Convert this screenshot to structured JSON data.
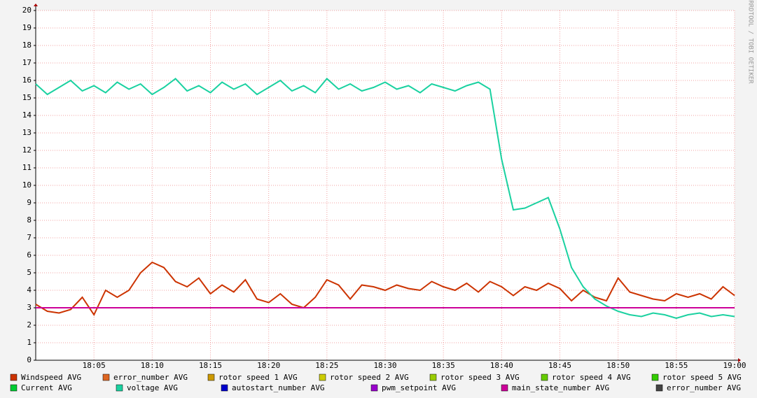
{
  "chart_data": {
    "type": "line",
    "watermark": "RRDTOOL / TOBI OETIKER",
    "categories": [
      null,
      null,
      null,
      null,
      null,
      "18:05",
      null,
      null,
      null,
      null,
      "18:10",
      null,
      null,
      null,
      null,
      "18:15",
      null,
      null,
      null,
      null,
      "18:20",
      null,
      null,
      null,
      null,
      "18:25",
      null,
      null,
      null,
      null,
      "18:30",
      null,
      null,
      null,
      null,
      "18:35",
      null,
      null,
      null,
      null,
      "18:40",
      null,
      null,
      null,
      null,
      "18:45",
      null,
      null,
      null,
      null,
      "18:50",
      null,
      null,
      null,
      null,
      "18:55",
      null,
      null,
      null,
      null,
      "19:00"
    ],
    "ylim": [
      0,
      20
    ],
    "yticks": [
      0,
      1,
      2,
      3,
      4,
      5,
      6,
      7,
      8,
      9,
      10,
      11,
      12,
      13,
      14,
      15,
      16,
      17,
      18,
      19,
      20
    ],
    "grid": true,
    "series": [
      {
        "name": "Windspeed AVG",
        "color": "#cc3300",
        "values": [
          3.2,
          2.8,
          2.7,
          2.9,
          3.6,
          2.6,
          4.0,
          3.6,
          4.0,
          5.0,
          5.6,
          5.3,
          4.5,
          4.2,
          4.7,
          3.8,
          4.3,
          3.9,
          4.6,
          3.5,
          3.3,
          3.8,
          3.2,
          3.0,
          3.6,
          4.6,
          4.3,
          3.5,
          4.3,
          4.2,
          4.0,
          4.3,
          4.1,
          4.0,
          4.5,
          4.2,
          4.0,
          4.4,
          3.9,
          4.5,
          4.2,
          3.7,
          4.2,
          4.0,
          4.4,
          4.1,
          3.4,
          4.0,
          3.6,
          3.4,
          4.7,
          3.9,
          3.7,
          3.5,
          3.4,
          3.8,
          3.6,
          3.8,
          3.5,
          4.2,
          3.7
        ]
      },
      {
        "name": "error_number AVG",
        "color": "#dd6622"
      },
      {
        "name": "rotor speed 1 AVG",
        "color": "#cc9900"
      },
      {
        "name": "rotor speed 2 AVG",
        "color": "#cccc00"
      },
      {
        "name": "rotor speed 3 AVG",
        "color": "#99cc00"
      },
      {
        "name": "rotor speed 4 AVG",
        "color": "#66cc00"
      },
      {
        "name": "rotor speed 5 AVG",
        "color": "#33cc00"
      },
      {
        "name": "Current AVG",
        "color": "#00cc33"
      },
      {
        "name": "voltage AVG",
        "color": "#1ad1a0",
        "values": [
          15.8,
          15.2,
          15.6,
          16.0,
          15.4,
          15.7,
          15.3,
          15.9,
          15.5,
          15.8,
          15.2,
          15.6,
          16.1,
          15.4,
          15.7,
          15.3,
          15.9,
          15.5,
          15.8,
          15.2,
          15.6,
          16.0,
          15.4,
          15.7,
          15.3,
          16.1,
          15.5,
          15.8,
          15.4,
          15.6,
          15.9,
          15.5,
          15.7,
          15.3,
          15.8,
          15.6,
          15.4,
          15.7,
          15.9,
          15.5,
          11.5,
          8.6,
          8.7,
          9.0,
          9.3,
          7.5,
          5.3,
          4.2,
          3.5,
          3.1,
          2.8,
          2.6,
          2.5,
          2.7,
          2.6,
          2.4,
          2.6,
          2.7,
          2.5,
          2.6,
          2.5
        ]
      },
      {
        "name": "autostart_number AVG",
        "color": "#0000cc"
      },
      {
        "name": "pwm_setpoint AVG",
        "color": "#9900cc"
      },
      {
        "name": "main_state_number AVG",
        "color": "#cc0099",
        "values": [
          3,
          3,
          3,
          3,
          3,
          3,
          3,
          3,
          3,
          3,
          3,
          3,
          3,
          3,
          3,
          3,
          3,
          3,
          3,
          3,
          3,
          3,
          3,
          3,
          3,
          3,
          3,
          3,
          3,
          3,
          3,
          3,
          3,
          3,
          3,
          3,
          3,
          3,
          3,
          3,
          3,
          3,
          3,
          3,
          3,
          3,
          3,
          3,
          3,
          3,
          3,
          3,
          3,
          3,
          3,
          3,
          3,
          3,
          3,
          3,
          3
        ]
      },
      {
        "name": "error_number AVG",
        "color": "#444444"
      }
    ]
  }
}
